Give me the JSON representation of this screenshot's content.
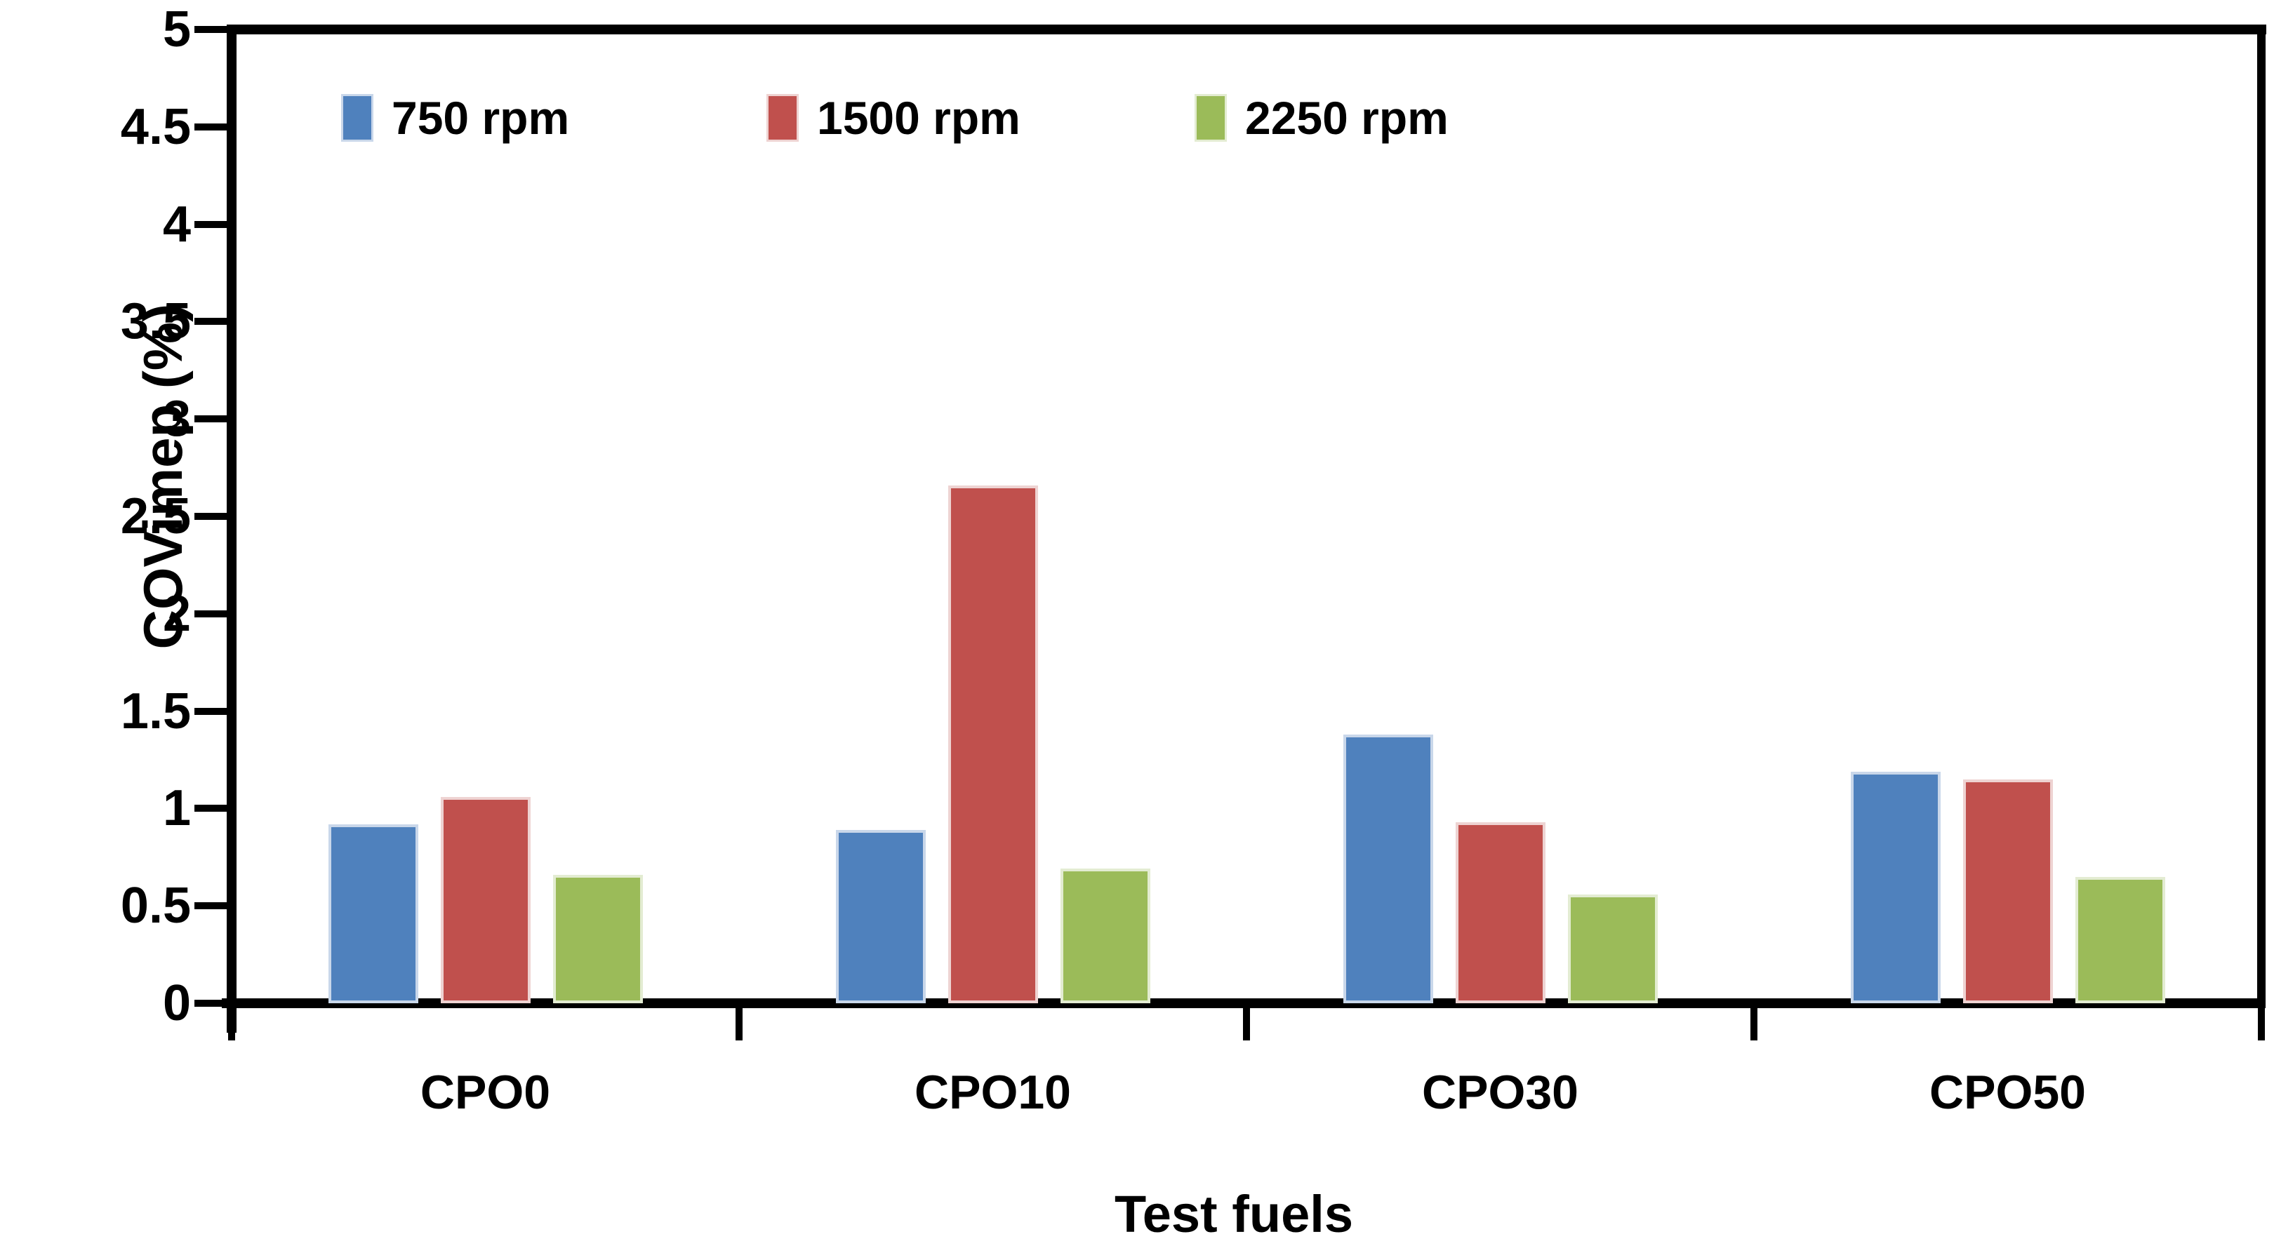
{
  "chart_data": {
    "type": "bar",
    "title": "",
    "xlabel": "Test fuels",
    "ylabel": "COVimep (%)",
    "categories": [
      "CPO0",
      "CPO10",
      "CPO30",
      "CPO50"
    ],
    "series": [
      {
        "name": "750 rpm",
        "color": "#4f81bd",
        "edge_color": "#c9d7ea",
        "values": [
          0.92,
          0.89,
          1.38,
          1.19
        ]
      },
      {
        "name": "1500 rpm",
        "color": "#c0504d",
        "edge_color": "#eed3d2",
        "values": [
          1.06,
          2.66,
          0.93,
          1.15
        ]
      },
      {
        "name": "2250 rpm",
        "color": "#9bbb59",
        "edge_color": "#e3ecd2",
        "values": [
          0.66,
          0.69,
          0.56,
          0.65
        ]
      }
    ],
    "ylim": [
      0,
      5
    ],
    "ytick_step": 0.5,
    "ytick_labels": [
      "0",
      "0.5",
      "1",
      "1.5",
      "2",
      "2.5",
      "3",
      "3.5",
      "4",
      "4.5",
      "5"
    ],
    "grid": false,
    "legend_position": "top-inside-horizontal",
    "axis_color": "#000000",
    "background_color": "#ffffff"
  }
}
